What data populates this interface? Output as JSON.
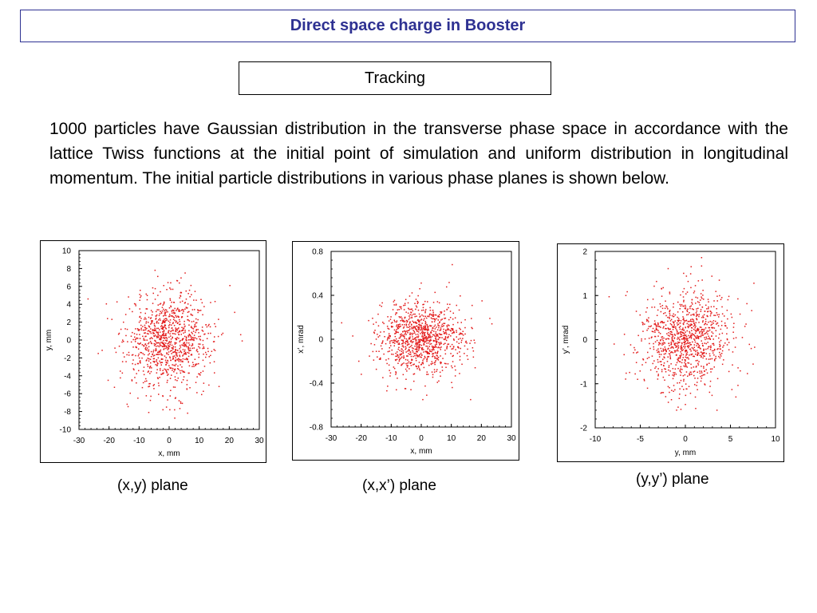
{
  "colors": {
    "title": "#2e3192",
    "points": "#e31b1b"
  },
  "header": {
    "title": "Direct space charge in Booster"
  },
  "section": {
    "title": "Tracking"
  },
  "body": {
    "paragraph": "1000 particles have Gaussian distribution in the transverse phase space in accordance with the lattice Twiss functions at the initial point of simulation and uniform distribution in longitudinal momentum. The initial particle distributions in various phase planes is shown below."
  },
  "captions": [
    "(x,y) plane",
    "(x,x’) plane",
    "(y,y’) plane"
  ],
  "chart_data": [
    {
      "type": "scatter",
      "xlabel": "x, mm",
      "ylabel": "y, mm",
      "xlim": [
        -30,
        30
      ],
      "ylim": [
        -10,
        10
      ],
      "xticks": [
        -30,
        -20,
        -10,
        0,
        10,
        20,
        30
      ],
      "xtick_labels": [
        "-30",
        "-20",
        "-10",
        "0",
        "10",
        "20",
        "30"
      ],
      "yticks": [
        10,
        8,
        6,
        4,
        2,
        0,
        -2,
        -4,
        -6,
        -8,
        -10
      ],
      "ytick_labels": [
        "10",
        "8",
        "6",
        "4",
        "2",
        "0",
        "-2",
        "-4",
        "-6",
        "-8",
        "-10"
      ],
      "sx": 7,
      "sy": 2.6,
      "cx": 0,
      "cy": 0,
      "n": 1000,
      "points": [
        [
          -27,
          4.6
        ],
        [
          -4.7,
          7.8
        ],
        [
          -1.8,
          6.1
        ],
        [
          0.5,
          6.4
        ],
        [
          5.3,
          7.5
        ],
        [
          20.2,
          6.1
        ],
        [
          21.8,
          3.1
        ],
        [
          24.3,
          -0.1
        ],
        [
          23.8,
          0.6
        ],
        [
          -23.6,
          -1.5
        ],
        [
          -20.3,
          -4.5
        ],
        [
          -10.4,
          -6.5
        ],
        [
          -0.9,
          -7.5
        ],
        [
          1.8,
          -7.8
        ],
        [
          10.8,
          -6.1
        ],
        [
          -6.8,
          -8.1
        ],
        [
          -0.5,
          -6.7
        ],
        [
          16.6,
          -5.2
        ],
        [
          -9.8,
          5.1
        ]
      ]
    },
    {
      "type": "scatter",
      "xlabel": "x, mm",
      "ylabel": "x’, mrad",
      "xlim": [
        -30,
        30
      ],
      "ylim": [
        -0.8,
        0.8
      ],
      "xticks": [
        -30,
        -20,
        -10,
        0,
        10,
        20,
        30
      ],
      "xtick_labels": [
        "-30",
        "-20",
        "-10",
        "0",
        "10",
        "20",
        "30"
      ],
      "yticks": [
        0.8,
        0.4,
        0,
        -0.4,
        -0.8
      ],
      "ytick_labels": [
        "0.8",
        "0.4",
        "0",
        "-0.4",
        "-0.8"
      ],
      "sx": 7,
      "sy": 0.16,
      "cx": 0,
      "cy": 0,
      "n": 1000,
      "points": [
        [
          10.3,
          0.68
        ],
        [
          -26.5,
          0.15
        ],
        [
          -22.8,
          0.03
        ],
        [
          -13.8,
          0.31
        ],
        [
          -0.5,
          0.46
        ],
        [
          20.2,
          0.35
        ],
        [
          23.5,
          0.14
        ],
        [
          22.8,
          0.19
        ],
        [
          -20.8,
          -0.2
        ],
        [
          -12.8,
          -0.35
        ],
        [
          1.8,
          -0.51
        ],
        [
          -5.2,
          -0.45
        ],
        [
          10.3,
          -0.44
        ],
        [
          16.4,
          -0.55
        ],
        [
          -8.3,
          -0.46
        ],
        [
          0.5,
          -0.55
        ]
      ]
    },
    {
      "type": "scatter",
      "xlabel": "y, mm",
      "ylabel": "y’, mrad",
      "xlim": [
        -10,
        10
      ],
      "ylim": [
        -2,
        2
      ],
      "xticks": [
        -10,
        -5,
        0,
        5,
        10
      ],
      "xtick_labels": [
        "-10",
        "-5",
        "0",
        "5",
        "10"
      ],
      "yticks": [
        2,
        1,
        0,
        -1,
        -2
      ],
      "ytick_labels": [
        "2",
        "1",
        "0",
        "-1",
        "-2"
      ],
      "sx": 2.6,
      "sy": 0.55,
      "cx": 0,
      "cy": 0,
      "n": 1000,
      "points": [
        [
          1.8,
          1.86
        ],
        [
          1.8,
          1.67
        ],
        [
          7.6,
          1.28
        ],
        [
          -6.6,
          1.0
        ],
        [
          -7.9,
          -0.1
        ],
        [
          6.6,
          0.3
        ],
        [
          7.3,
          -0.2
        ],
        [
          -5.3,
          -0.9
        ],
        [
          -4.2,
          -1.1
        ],
        [
          3.5,
          -1.6
        ],
        [
          0.0,
          -1.47
        ],
        [
          5.6,
          -1.3
        ],
        [
          -2.6,
          -1.2
        ],
        [
          -0.5,
          -1.58
        ],
        [
          -3.2,
          1.32
        ],
        [
          0.3,
          1.32
        ]
      ]
    }
  ]
}
